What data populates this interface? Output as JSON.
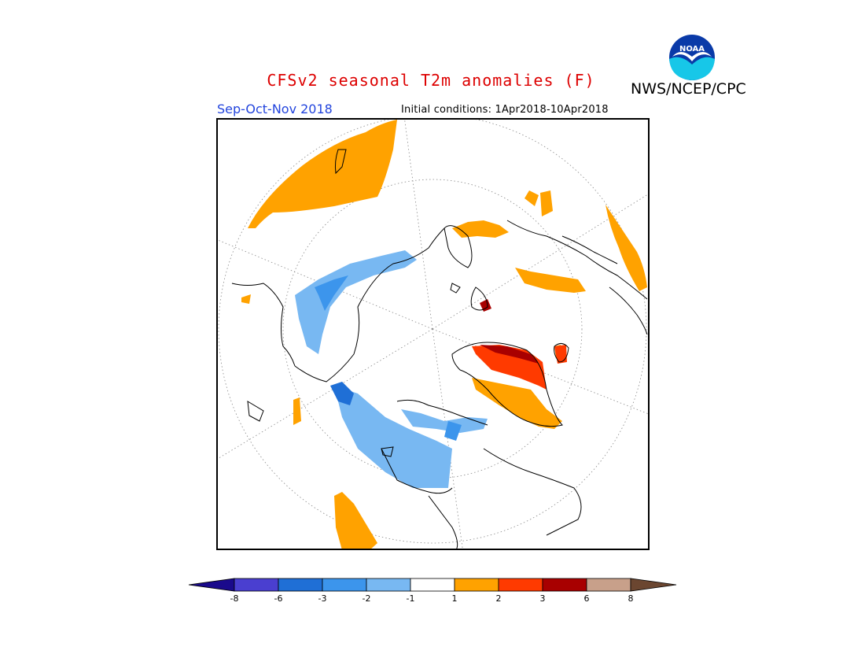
{
  "header": {
    "title": "CFSv2 seasonal T2m anomalies (F)",
    "title_color": "#dd0000",
    "agency": "NWS/NCEP/CPC",
    "season": "Sep-Oct-Nov 2018",
    "season_color": "#2244dd",
    "initial_conditions": "Initial conditions: 1Apr2018-10Apr2018"
  },
  "logo": {
    "icon": "noaa-logo",
    "text": "NOAA"
  },
  "map": {
    "projection": "polar-stereographic-north",
    "variable": "2m temperature anomaly"
  },
  "colorbar": {
    "labels": [
      "-8",
      "-6",
      "-3",
      "-2",
      "-1",
      "1",
      "2",
      "3",
      "6",
      "8"
    ],
    "colors": [
      "#1a0a8c",
      "#4a3fd0",
      "#1f6fd6",
      "#3c95ec",
      "#78b8f2",
      "#ffffff",
      "#ffa200",
      "#ff3a00",
      "#a80000",
      "#c8a08a",
      "#6b4630"
    ]
  }
}
